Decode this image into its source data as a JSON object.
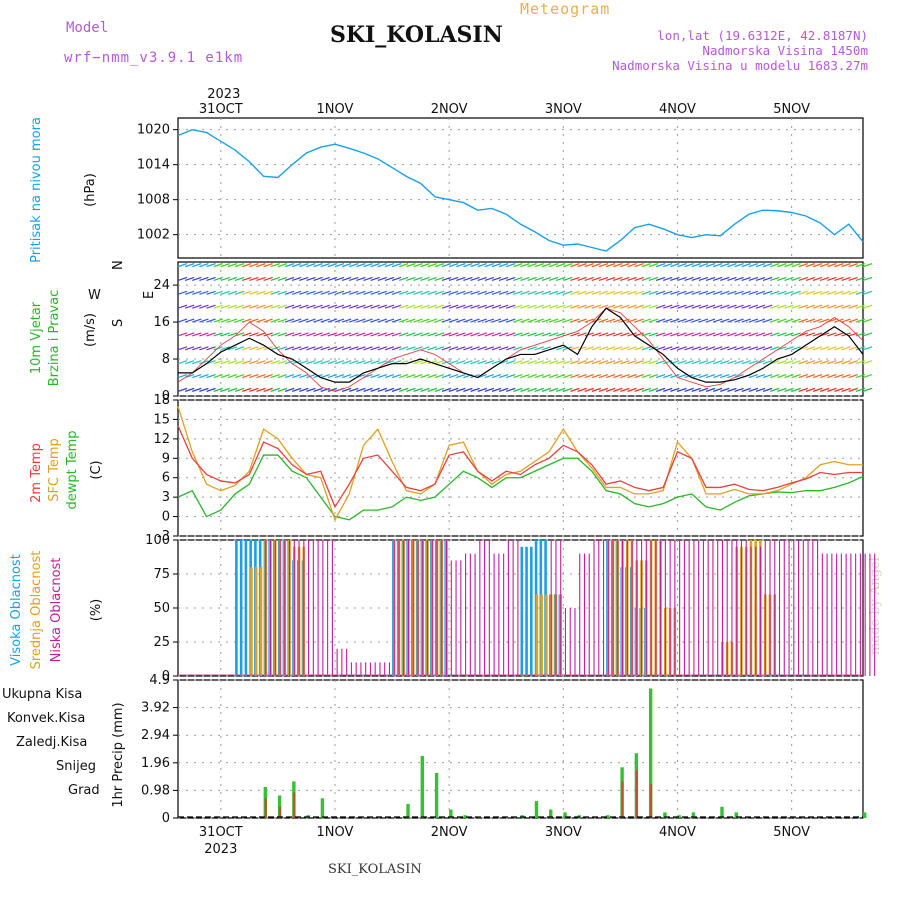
{
  "header": {
    "model_label": "Model",
    "model_value": "wrf−nmm_v3.9.1  e1km",
    "station": "SKI_KOLASIN",
    "kind": "Meteogram",
    "lonlat": "lon,lat (19.6312E, 42.8187N)",
    "altitude": "Nadmorska Visina 1450m",
    "model_altitude": "Nadmorska Visina u modelu 1683.27m"
  },
  "footer": {
    "station": "SKI_KOLASIN",
    "credit": "made by Angel"
  },
  "colors": {
    "pressure": "#1aa0e6",
    "temp": "#e84040",
    "sfc": "#e0a020",
    "dewpt": "#2ab52a",
    "magenta": "#c0209a",
    "blue": "#2f3fd0",
    "cyan": "#20c0c0"
  },
  "chart_data": [
    {
      "type": "line",
      "panel": "pressure",
      "ylabel": [
        "Pritisak na nivou mora",
        "(hPa)"
      ],
      "yticks": [
        1002,
        1008,
        1014,
        1020
      ],
      "ylim": [
        998,
        1022
      ],
      "x_top_labels": [
        "2023",
        "31OCT",
        "1NOV",
        "2NOV",
        "3NOV",
        "4NOV",
        "5NOV"
      ],
      "x_hours": [
        0,
        3,
        6,
        9,
        12,
        15,
        18,
        21,
        24,
        27,
        30,
        33,
        36,
        39,
        42,
        45,
        48,
        51,
        54,
        57,
        60,
        63,
        66,
        69,
        72,
        75,
        78,
        81,
        84,
        87,
        90,
        93,
        96,
        99,
        102,
        105,
        108,
        111,
        114,
        117,
        120,
        123,
        126,
        129,
        132,
        135,
        138,
        141,
        144
      ],
      "x_start": "2023-10-30 15:00",
      "x_step_hours": 3,
      "series": [
        {
          "values": [
            1019,
            1020,
            1019.5,
            1018,
            1016.5,
            1014.5,
            1012,
            1011.8,
            1014,
            1016,
            1017,
            1017.5,
            1016.8,
            1016,
            1015,
            1013.5,
            1012,
            1010.8,
            1008.5,
            1008,
            1007.5,
            1006.2,
            1006.5,
            1005.5,
            1003.8,
            1002.5,
            1001,
            1000.2,
            1000.4,
            999.8,
            999.2,
            1001,
            1003.2,
            1003.8,
            1003,
            1002,
            1001.5,
            1002,
            1001.8,
            1003.8,
            1005.5,
            1006.2,
            1006.1,
            1005.8,
            1005.2,
            1004,
            1002,
            1003.8,
            1000.8
          ]
        }
      ]
    },
    {
      "type": "line",
      "panel": "wind",
      "ylabel": [
        "10m Vjetar Brzina i Pravac",
        "(m/s)"
      ],
      "compass": [
        "N",
        "E",
        "S",
        "W"
      ],
      "yticks": [
        0,
        8,
        16,
        24
      ],
      "ylim": [
        0,
        29
      ],
      "series": [
        {
          "values": [
            5,
            5,
            7,
            9.5,
            11,
            12.5,
            11,
            9,
            8,
            6,
            4,
            3,
            3,
            5,
            6,
            7,
            7,
            8,
            7,
            6,
            5,
            4,
            6,
            8,
            9,
            9,
            10,
            11,
            9,
            15,
            19,
            17,
            13,
            11,
            9,
            6,
            4,
            3,
            3,
            3.5,
            4.5,
            6,
            8,
            9,
            11,
            13,
            15,
            13,
            9
          ]
        },
        {
          "values": [
            3,
            5,
            8,
            11,
            13,
            16,
            14,
            10,
            7,
            5,
            2,
            1,
            2,
            4,
            6,
            8,
            9,
            10,
            9,
            7,
            5,
            4,
            6,
            8,
            10,
            11,
            12,
            13,
            14,
            16,
            19,
            18,
            15,
            12,
            8,
            4,
            3,
            2,
            2.5,
            4,
            6,
            8,
            10,
            12,
            14,
            15,
            17,
            15,
            12
          ]
        }
      ]
    },
    {
      "type": "line",
      "panel": "temperature",
      "ylabel": [
        "2m Temp",
        "SFC Temp",
        "dewpt Temp",
        "(C)"
      ],
      "yticks": [
        -3,
        0,
        3,
        6,
        9,
        12,
        15,
        18
      ],
      "ylim": [
        -3,
        18
      ],
      "series": [
        {
          "name": "2m Temp",
          "values": [
            14,
            9,
            6.5,
            5.5,
            5.2,
            6.5,
            11.5,
            10.5,
            8,
            6.5,
            7,
            1.5,
            5,
            9,
            9.5,
            7,
            4.5,
            4,
            5,
            9.5,
            10,
            7,
            5.5,
            7,
            6.5,
            8,
            9,
            11,
            10,
            8,
            5,
            5.5,
            4.5,
            4,
            4.5,
            10,
            9,
            4.5,
            4.5,
            5,
            4.2,
            4,
            4.5,
            5.2,
            5.8,
            6.8,
            6.5,
            6.8,
            6.8
          ]
        },
        {
          "name": "SFC Temp",
          "values": [
            17,
            10,
            5,
            4,
            4.8,
            7,
            13.5,
            12,
            9,
            6.5,
            6,
            -0.5,
            3.5,
            11,
            13.5,
            8.5,
            4,
            3.5,
            5,
            11,
            11.5,
            7,
            5,
            6.5,
            7,
            8.5,
            10,
            13.5,
            10,
            7.5,
            4.5,
            4.5,
            3.5,
            3.5,
            4,
            11.5,
            9,
            3.5,
            3.5,
            4.2,
            3.5,
            3.5,
            4,
            5,
            6,
            8,
            8.5,
            8,
            8
          ]
        },
        {
          "name": "dewpt Temp",
          "values": [
            3,
            4,
            0,
            1,
            3.5,
            5,
            9.5,
            9.5,
            7,
            6,
            3,
            0,
            -0.5,
            1,
            1,
            1.5,
            3,
            2.5,
            3,
            5,
            7,
            6,
            4.5,
            6,
            6,
            7,
            8,
            9,
            9,
            7,
            4,
            3.5,
            2,
            1.5,
            2,
            3,
            3.5,
            1.5,
            1,
            2.2,
            3.2,
            3.5,
            3.8,
            3.7,
            4,
            4,
            4.5,
            5.2,
            6.2
          ]
        }
      ]
    },
    {
      "type": "bar",
      "panel": "cloud",
      "ylabel": [
        "Visoka Oblacnost",
        "Srednja Oblacnost",
        "Niska Oblacnost",
        "(%)"
      ],
      "yticks": [
        0,
        25,
        50,
        75,
        100
      ],
      "ylim": [
        0,
        100
      ],
      "series": [
        {
          "name": "Visoka Oblacnost",
          "values": [
            0,
            0,
            0,
            0,
            100,
            100,
            100,
            100,
            85,
            0,
            0,
            0,
            0,
            0,
            0,
            100,
            100,
            100,
            100,
            0,
            0,
            0,
            0,
            0,
            95,
            100,
            60,
            0,
            0,
            0,
            100,
            80,
            50,
            0,
            0,
            0,
            0,
            0,
            0,
            0,
            0,
            0,
            0,
            0,
            0,
            0,
            0,
            0,
            0
          ]
        },
        {
          "name": "Srednja Oblacnost",
          "values": [
            0,
            0,
            0,
            0,
            0,
            80,
            100,
            100,
            95,
            0,
            0,
            0,
            0,
            0,
            0,
            100,
            100,
            100,
            100,
            0,
            0,
            0,
            0,
            0,
            0,
            60,
            60,
            0,
            0,
            0,
            100,
            100,
            85,
            100,
            50,
            0,
            0,
            0,
            25,
            95,
            100,
            60,
            0,
            0,
            0,
            0,
            0,
            0,
            0
          ]
        },
        {
          "name": "Niska Oblacnost",
          "values": [
            0,
            0,
            0,
            0,
            0,
            0,
            100,
            100,
            100,
            100,
            100,
            20,
            10,
            10,
            10,
            100,
            100,
            100,
            100,
            85,
            90,
            100,
            90,
            100,
            0,
            0,
            100,
            50,
            90,
            100,
            100,
            100,
            100,
            100,
            100,
            100,
            100,
            100,
            100,
            100,
            95,
            100,
            100,
            100,
            100,
            90,
            90,
            90,
            90
          ]
        }
      ]
    },
    {
      "type": "bar",
      "panel": "precipitation",
      "ylabel": [
        "1hr Precip (mm)"
      ],
      "legend": [
        "Ukupna Kisa",
        "Konvek.Kisa",
        "Zaledj.Kisa",
        "Snijeg",
        "Grad"
      ],
      "yticks": [
        0,
        0.98,
        1.96,
        2.94,
        3.92,
        4.9
      ],
      "ylim": [
        0,
        4.9
      ],
      "x_bottom_labels": [
        "31OCT",
        "2023",
        "1NOV",
        "2NOV",
        "3NOV",
        "4NOV",
        "5NOV"
      ],
      "series": [
        {
          "name": "Ukupna Kisa",
          "values": [
            0,
            0,
            0,
            0,
            0,
            0,
            1.1,
            0.8,
            1.3,
            0.1,
            0.7,
            0,
            0,
            0,
            0,
            0,
            0.5,
            2.2,
            1.6,
            0.3,
            0.1,
            0.05,
            0,
            0,
            0.1,
            0.6,
            0.3,
            0.2,
            0.1,
            0,
            0.1,
            1.8,
            2.3,
            4.6,
            0.2,
            0.1,
            0.2,
            0,
            0.4,
            0.2,
            0,
            0,
            0,
            0,
            0,
            0,
            0,
            0,
            0.2
          ]
        },
        {
          "name": "Konvek.Kisa",
          "values": [
            0,
            0,
            0,
            0,
            0,
            0,
            0.7,
            0.4,
            0.9,
            0,
            0,
            0,
            0,
            0,
            0,
            0,
            0,
            0,
            0,
            0,
            0,
            0,
            0,
            0,
            0,
            0,
            0,
            0,
            0,
            0,
            0,
            1.3,
            1.7,
            1.2,
            0,
            0,
            0,
            0,
            0,
            0,
            0,
            0,
            0,
            0,
            0,
            0,
            0,
            0,
            0
          ]
        }
      ]
    }
  ]
}
